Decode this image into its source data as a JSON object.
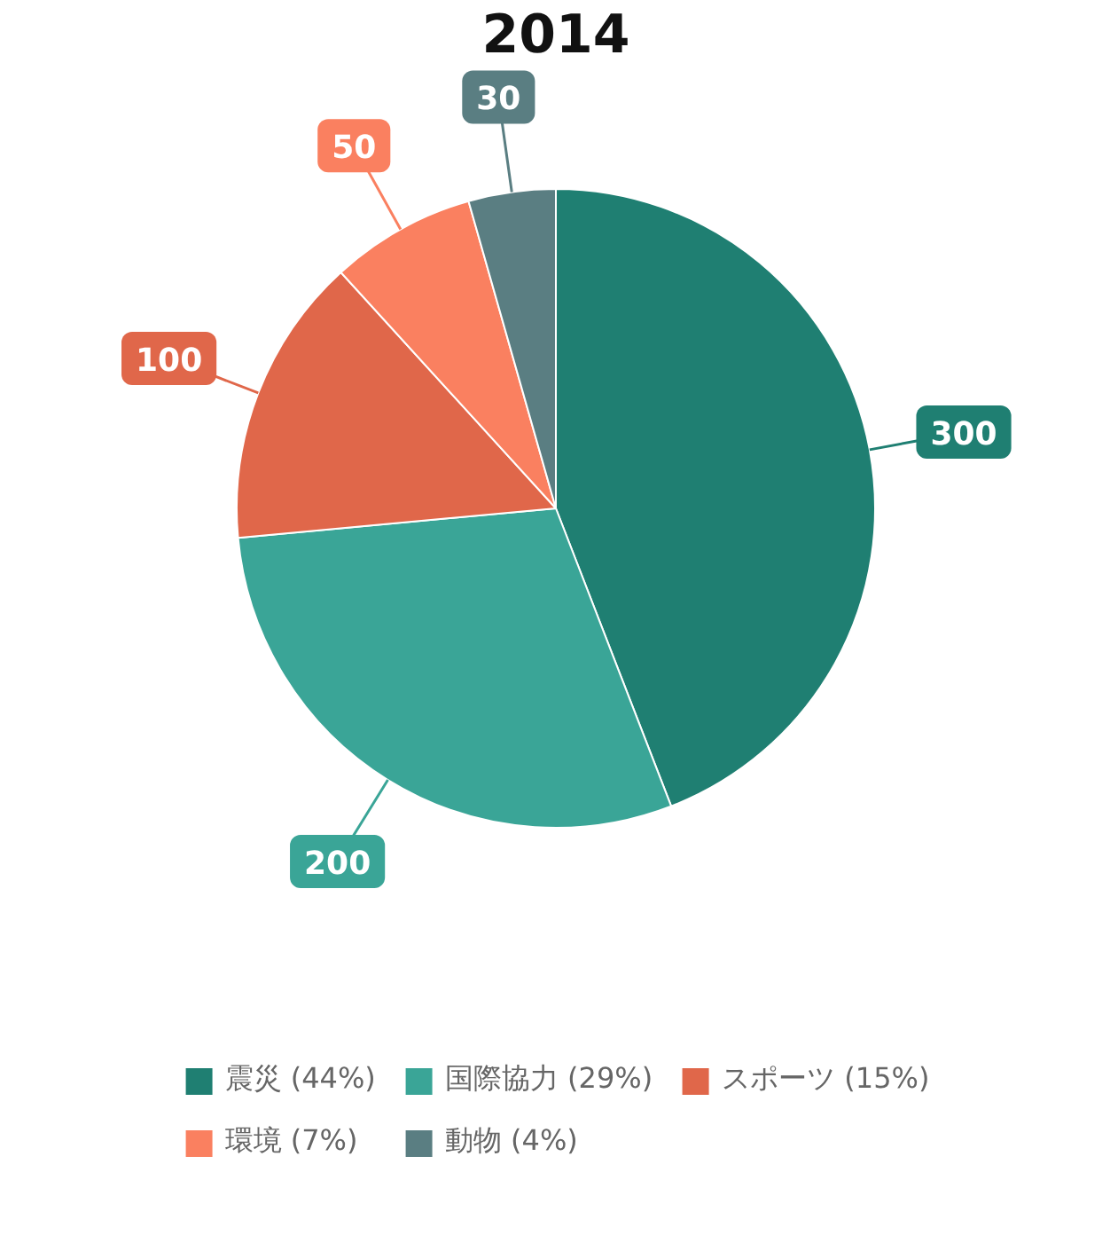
{
  "chart_data": {
    "type": "pie",
    "title": "2014",
    "categories": [
      "震災 (44%)",
      "国際協力 (29%)",
      "スポーツ (15%)",
      "環境 (7%)",
      "動物 (4%)"
    ],
    "values": [
      300,
      200,
      100,
      50,
      30
    ],
    "colors": [
      "#1f7f72",
      "#3aa597",
      "#e0674a",
      "#fa8060",
      "#5a7e82"
    ],
    "data_labels": true,
    "legend": "bottom"
  }
}
